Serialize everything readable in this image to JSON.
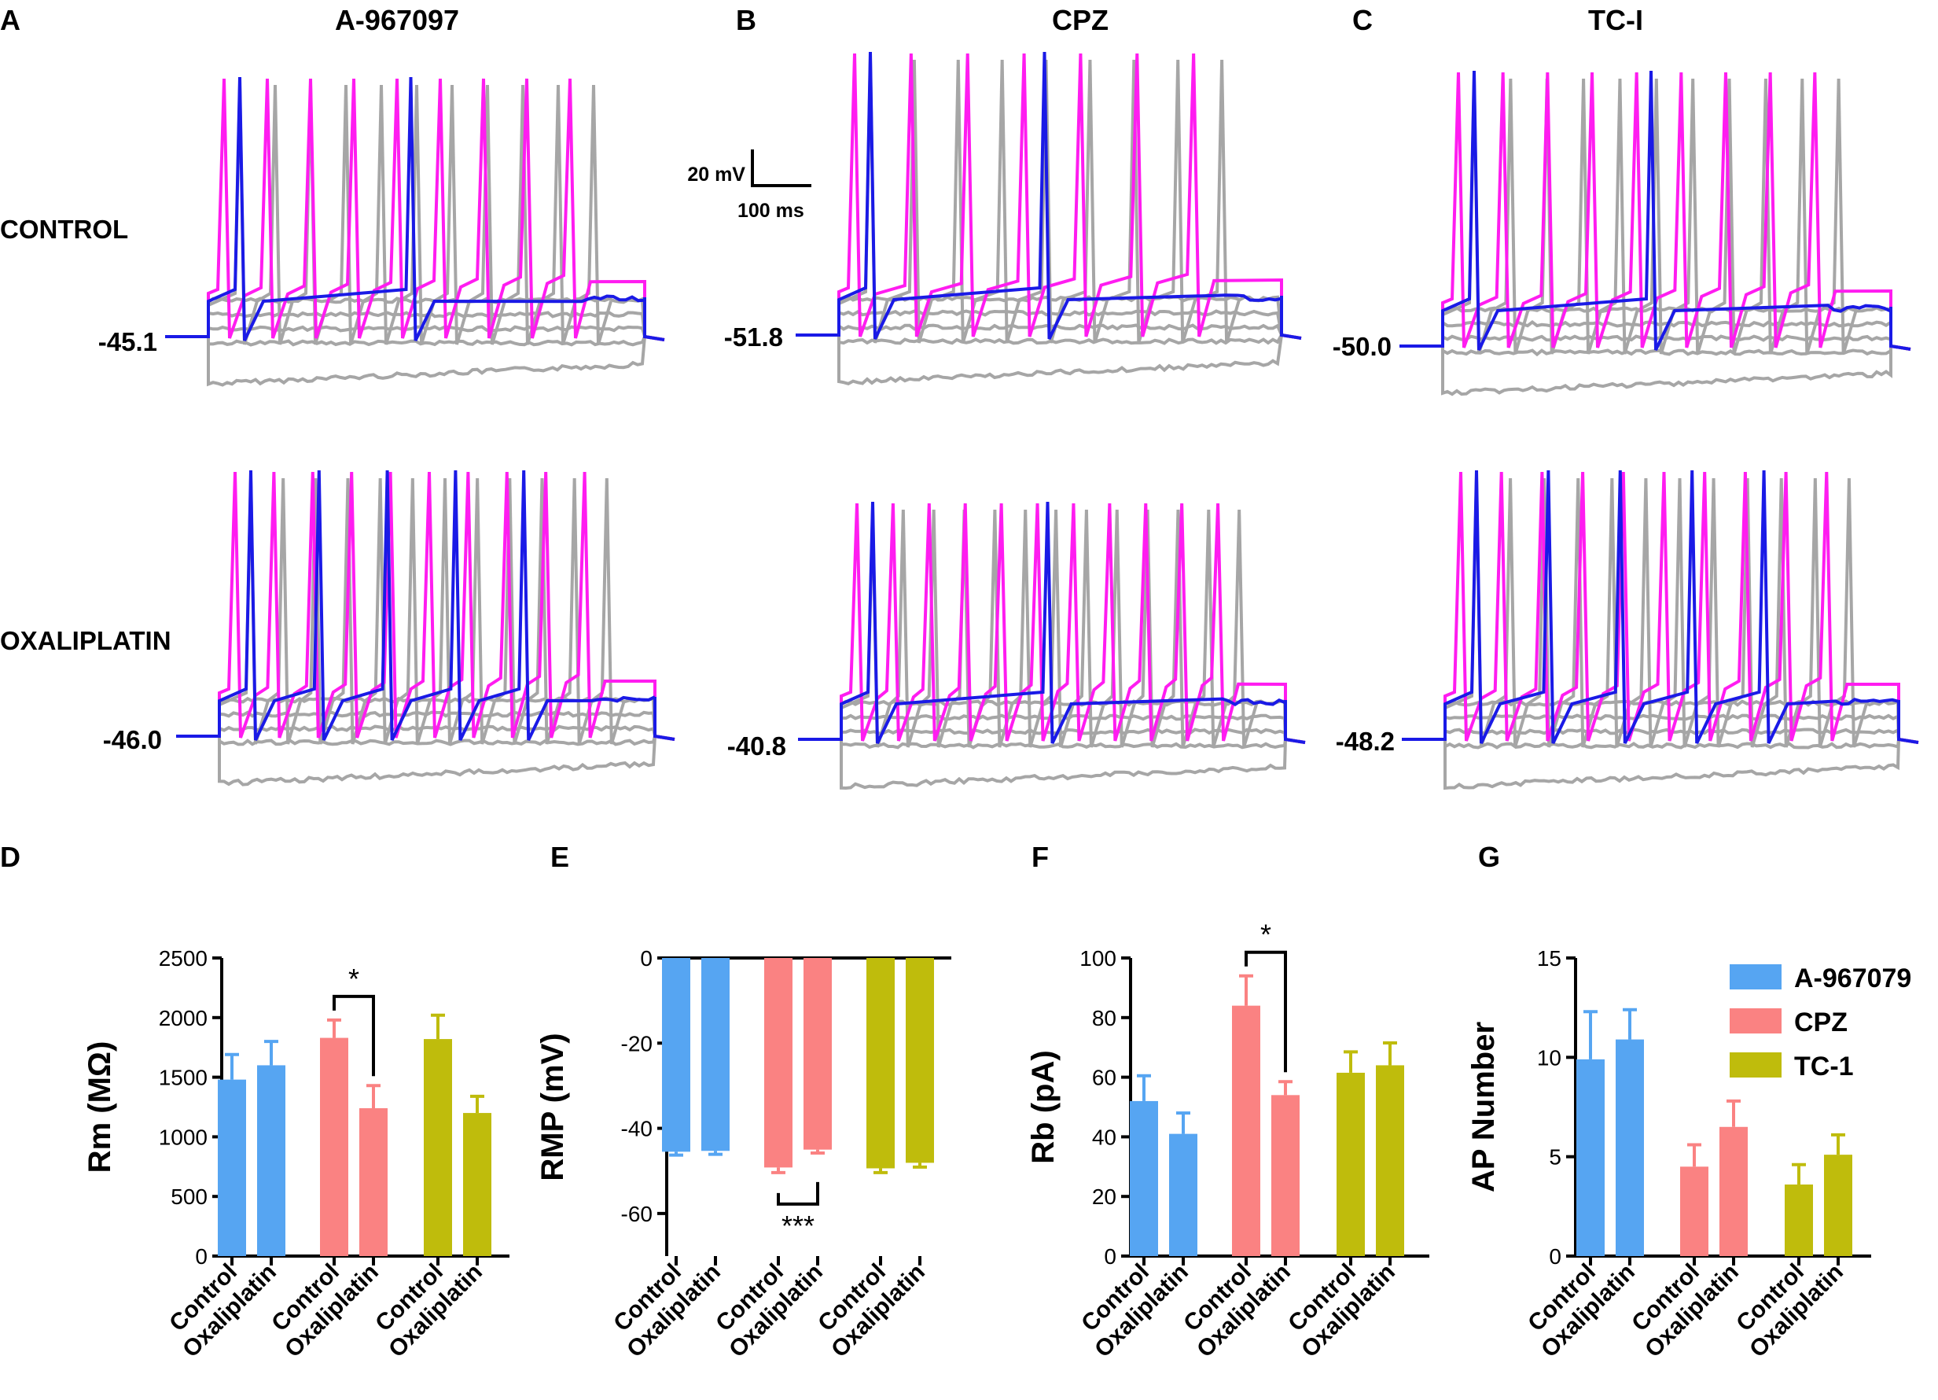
{
  "traces": {
    "panels": [
      {
        "letter": "A",
        "title": "A-967097",
        "rmp_control": "-45.1",
        "rmp_oxaliplatin": "-46.0"
      },
      {
        "letter": "B",
        "title": "CPZ",
        "rmp_control": "-51.8",
        "rmp_oxaliplatin": "-40.8"
      },
      {
        "letter": "C",
        "title": "TC-I",
        "rmp_control": "-50.0",
        "rmp_oxaliplatin": "-48.2"
      }
    ],
    "row_labels": [
      "CONTROL",
      "OXALIPLATIN"
    ],
    "scale_bar": {
      "voltage": "20 mV",
      "time": "100 ms"
    },
    "colors": {
      "gray": "#a6a6a6",
      "magenta": "#ff1cf0",
      "blue": "#1a1ae6"
    }
  },
  "chart_data": [
    {
      "panel": "D",
      "type": "bar",
      "ylabel": "Rm (MΩ)",
      "ylim": [
        0,
        2500
      ],
      "yticks": [
        "0",
        "500",
        "1000",
        "1500",
        "2000",
        "2500"
      ],
      "categories": [
        "Control",
        "Oxaliplatin"
      ],
      "groups": [
        {
          "name": "A-967079",
          "values": [
            1480,
            1600
          ],
          "errors": [
            210,
            200
          ]
        },
        {
          "name": "CPZ",
          "values": [
            1830,
            1240
          ],
          "errors": [
            150,
            190
          ]
        },
        {
          "name": "TC-1",
          "values": [
            1820,
            1200
          ],
          "errors": [
            200,
            140
          ]
        }
      ],
      "significance": [
        {
          "group": 1,
          "label": "*"
        }
      ]
    },
    {
      "panel": "E",
      "type": "bar",
      "ylabel": "RMP (mV)",
      "ylim": [
        -70,
        0
      ],
      "yticks": [
        "0",
        "-20",
        "-40",
        "-60"
      ],
      "categories": [
        "Control",
        "Oxaliplatin"
      ],
      "groups": [
        {
          "name": "A-967079",
          "values": [
            -45.5,
            -45.3
          ],
          "errors": [
            0.8,
            0.8
          ]
        },
        {
          "name": "CPZ",
          "values": [
            -49.2,
            -45.0
          ],
          "errors": [
            1.2,
            0.8
          ]
        },
        {
          "name": "TC-1",
          "values": [
            -49.4,
            -48.1
          ],
          "errors": [
            1.0,
            1.0
          ]
        }
      ],
      "significance": [
        {
          "group": 1,
          "label": "***"
        }
      ]
    },
    {
      "panel": "F",
      "type": "bar",
      "ylabel": "Rb (pA)",
      "ylim": [
        0,
        100
      ],
      "yticks": [
        "0",
        "20",
        "40",
        "60",
        "80",
        "100"
      ],
      "categories": [
        "Control",
        "Oxaliplatin"
      ],
      "groups": [
        {
          "name": "A-967079",
          "values": [
            52,
            41
          ],
          "errors": [
            8.5,
            7
          ]
        },
        {
          "name": "CPZ",
          "values": [
            84,
            54
          ],
          "errors": [
            10,
            4.5
          ]
        },
        {
          "name": "TC-1",
          "values": [
            61.5,
            64
          ],
          "errors": [
            7,
            7.5
          ]
        }
      ],
      "significance": [
        {
          "group": 1,
          "label": "*"
        }
      ]
    },
    {
      "panel": "G",
      "type": "bar",
      "ylabel": "AP Number",
      "ylim": [
        0,
        15
      ],
      "yticks": [
        "0",
        "5",
        "10",
        "15"
      ],
      "categories": [
        "Control",
        "Oxaliplatin"
      ],
      "groups": [
        {
          "name": "A-967079",
          "values": [
            9.9,
            10.9
          ],
          "errors": [
            2.4,
            1.5
          ]
        },
        {
          "name": "CPZ",
          "values": [
            4.5,
            6.5
          ],
          "errors": [
            1.1,
            1.3
          ]
        },
        {
          "name": "TC-1",
          "values": [
            3.6,
            5.1
          ],
          "errors": [
            1.0,
            1.0
          ]
        }
      ],
      "legend": [
        "A-967079",
        "CPZ",
        "TC-1"
      ]
    }
  ],
  "colors": {
    "A-967079": "#56a5f2",
    "CPZ": "#fa8282",
    "TC-1": "#bfbc0c"
  }
}
